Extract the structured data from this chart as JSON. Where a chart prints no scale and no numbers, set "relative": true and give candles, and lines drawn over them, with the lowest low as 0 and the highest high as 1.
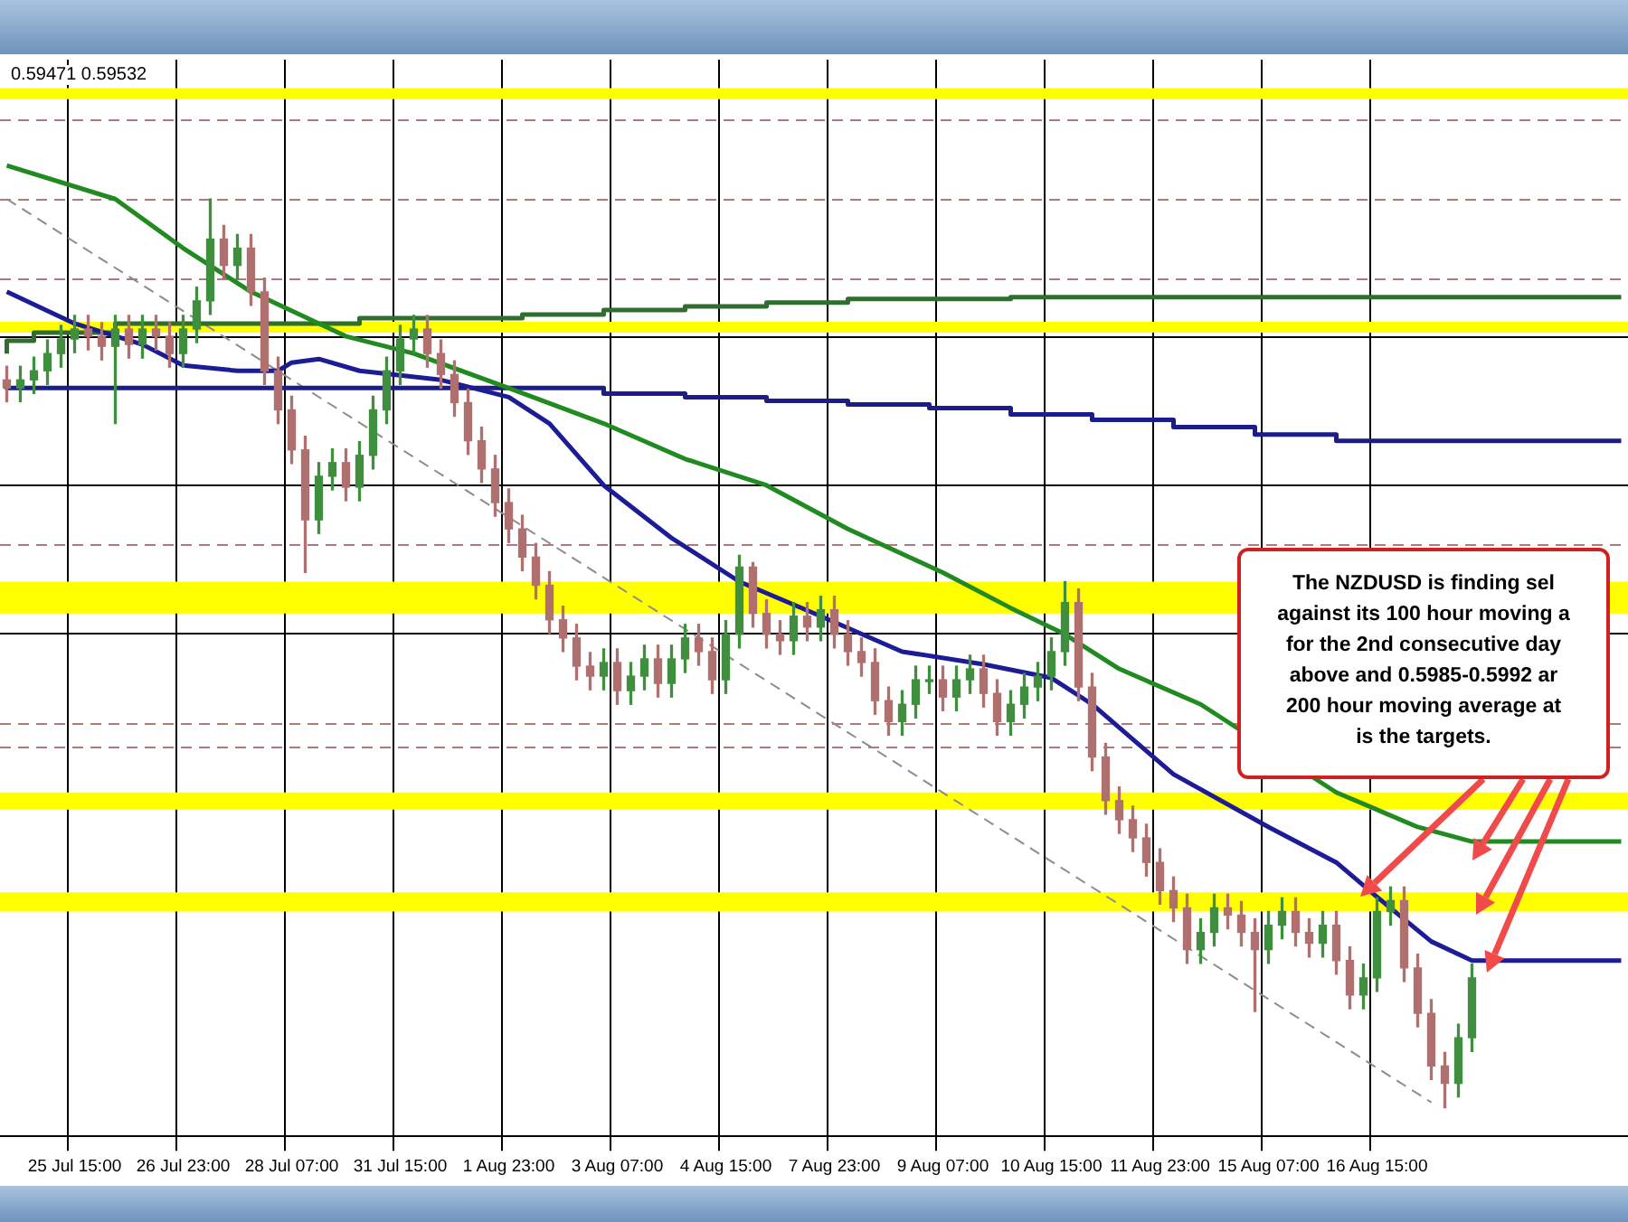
{
  "chart_data": {
    "type": "candlestick",
    "relative": true,
    "tick_labels": "x",
    "grid": "x",
    "legend": false,
    "marker": "none",
    "categories": [
      null,
      null,
      null,
      null,
      null,
      "25 Jul 15:00",
      null,
      null,
      null,
      null,
      null,
      null,
      null,
      "26 Jul 23:00",
      null,
      null,
      null,
      null,
      null,
      null,
      null,
      "28 Jul 07:00",
      null,
      null,
      null,
      null,
      null,
      null,
      null,
      "31 Jul 15:00",
      null,
      null,
      null,
      null,
      null,
      null,
      null,
      "1 Aug 23:00",
      null,
      null,
      null,
      null,
      null,
      null,
      null,
      "3 Aug 07:00",
      null,
      null,
      null,
      null,
      null,
      null,
      null,
      "4 Aug 15:00",
      null,
      null,
      null,
      null,
      null,
      null,
      null,
      "7 Aug 23:00",
      null,
      null,
      null,
      null,
      null,
      null,
      null,
      "9 Aug 07:00",
      null,
      null,
      null,
      null,
      null,
      null,
      null,
      "10 Aug 15:00",
      null,
      null,
      null,
      null,
      null,
      null,
      null,
      "11 Aug 23:00",
      null,
      null,
      null,
      null,
      null,
      null,
      null,
      "15 Aug 07:00",
      null,
      null,
      null,
      null,
      null,
      null,
      null,
      "16 Aug 15:00",
      null,
      null,
      null,
      null,
      null,
      null,
      null,
      null,
      null,
      null,
      null,
      null,
      null,
      null,
      null,
      null,
      null,
      null
    ],
    "ohlc": [
      [
        0.801,
        0.816,
        0.777,
        0.792
      ],
      [
        0.792,
        0.816,
        0.777,
        0.801
      ],
      [
        0.801,
        0.826,
        0.786,
        0.811
      ],
      [
        0.811,
        0.845,
        0.796,
        0.83
      ],
      [
        0.83,
        0.861,
        0.815,
        0.846
      ],
      [
        0.846,
        0.872,
        0.831,
        0.857
      ],
      [
        0.857,
        0.872,
        0.834,
        0.849
      ],
      [
        0.849,
        0.864,
        0.823,
        0.838
      ],
      [
        0.838,
        0.872,
        0.753,
        0.857
      ],
      [
        0.857,
        0.872,
        0.825,
        0.84
      ],
      [
        0.84,
        0.872,
        0.825,
        0.857
      ],
      [
        0.857,
        0.872,
        0.834,
        0.849
      ],
      [
        0.849,
        0.864,
        0.815,
        0.83
      ],
      [
        0.83,
        0.872,
        0.815,
        0.857
      ],
      [
        0.857,
        0.903,
        0.842,
        0.888
      ],
      [
        0.888,
        1.0,
        0.873,
        0.956
      ],
      [
        0.956,
        0.971,
        0.912,
        0.927
      ],
      [
        0.927,
        0.961,
        0.912,
        0.946
      ],
      [
        0.946,
        0.961,
        0.883,
        0.898
      ],
      [
        0.898,
        0.913,
        0.796,
        0.811
      ],
      [
        0.811,
        0.826,
        0.753,
        0.768
      ],
      [
        0.768,
        0.783,
        0.709,
        0.724
      ],
      [
        0.724,
        0.739,
        0.589,
        0.647
      ],
      [
        0.647,
        0.71,
        0.632,
        0.695
      ],
      [
        0.695,
        0.725,
        0.68,
        0.71
      ],
      [
        0.71,
        0.725,
        0.668,
        0.683
      ],
      [
        0.683,
        0.733,
        0.668,
        0.718
      ],
      [
        0.718,
        0.783,
        0.703,
        0.768
      ],
      [
        0.768,
        0.826,
        0.753,
        0.811
      ],
      [
        0.811,
        0.861,
        0.796,
        0.846
      ],
      [
        0.846,
        0.872,
        0.831,
        0.857
      ],
      [
        0.857,
        0.872,
        0.815,
        0.83
      ],
      [
        0.83,
        0.845,
        0.792,
        0.807
      ],
      [
        0.807,
        0.822,
        0.761,
        0.776
      ],
      [
        0.776,
        0.791,
        0.719,
        0.734
      ],
      [
        0.734,
        0.749,
        0.688,
        0.703
      ],
      [
        0.703,
        0.718,
        0.651,
        0.666
      ],
      [
        0.666,
        0.681,
        0.622,
        0.637
      ],
      [
        0.637,
        0.652,
        0.591,
        0.606
      ],
      [
        0.606,
        0.621,
        0.56,
        0.575
      ],
      [
        0.575,
        0.59,
        0.522,
        0.537
      ],
      [
        0.537,
        0.552,
        0.502,
        0.517
      ],
      [
        0.517,
        0.532,
        0.471,
        0.486
      ],
      [
        0.486,
        0.501,
        0.46,
        0.475
      ],
      [
        0.475,
        0.505,
        0.46,
        0.49
      ],
      [
        0.49,
        0.505,
        0.444,
        0.459
      ],
      [
        0.459,
        0.49,
        0.444,
        0.475
      ],
      [
        0.475,
        0.509,
        0.46,
        0.494
      ],
      [
        0.494,
        0.509,
        0.452,
        0.467
      ],
      [
        0.467,
        0.509,
        0.452,
        0.494
      ],
      [
        0.494,
        0.532,
        0.479,
        0.517
      ],
      [
        0.517,
        0.532,
        0.487,
        0.502
      ],
      [
        0.502,
        0.517,
        0.456,
        0.471
      ],
      [
        0.471,
        0.536,
        0.456,
        0.521
      ],
      [
        0.521,
        0.608,
        0.506,
        0.595
      ],
      [
        0.595,
        0.6,
        0.529,
        0.544
      ],
      [
        0.544,
        0.559,
        0.506,
        0.521
      ],
      [
        0.521,
        0.536,
        0.499,
        0.514
      ],
      [
        0.514,
        0.556,
        0.499,
        0.541
      ],
      [
        0.541,
        0.556,
        0.514,
        0.529
      ],
      [
        0.529,
        0.563,
        0.514,
        0.548
      ],
      [
        0.548,
        0.563,
        0.506,
        0.521
      ],
      [
        0.521,
        0.536,
        0.487,
        0.502
      ],
      [
        0.502,
        0.517,
        0.475,
        0.49
      ],
      [
        0.49,
        0.505,
        0.433,
        0.448
      ],
      [
        0.448,
        0.463,
        0.41,
        0.425
      ],
      [
        0.425,
        0.459,
        0.41,
        0.444
      ],
      [
        0.444,
        0.486,
        0.429,
        0.471
      ],
      [
        0.471,
        0.486,
        0.456,
        0.471
      ],
      [
        0.471,
        0.486,
        0.437,
        0.452
      ],
      [
        0.452,
        0.486,
        0.437,
        0.471
      ],
      [
        0.471,
        0.498,
        0.456,
        0.483
      ],
      [
        0.483,
        0.498,
        0.441,
        0.456
      ],
      [
        0.456,
        0.471,
        0.41,
        0.425
      ],
      [
        0.425,
        0.459,
        0.41,
        0.444
      ],
      [
        0.444,
        0.478,
        0.429,
        0.463
      ],
      [
        0.463,
        0.49,
        0.448,
        0.475
      ],
      [
        0.475,
        0.517,
        0.46,
        0.502
      ],
      [
        0.502,
        0.579,
        0.487,
        0.556
      ],
      [
        0.556,
        0.571,
        0.448,
        0.463
      ],
      [
        0.463,
        0.478,
        0.371,
        0.386
      ],
      [
        0.386,
        0.401,
        0.323,
        0.338
      ],
      [
        0.338,
        0.353,
        0.302,
        0.317
      ],
      [
        0.317,
        0.332,
        0.282,
        0.297
      ],
      [
        0.297,
        0.312,
        0.255,
        0.27
      ],
      [
        0.27,
        0.285,
        0.224,
        0.239
      ],
      [
        0.239,
        0.254,
        0.205,
        0.22
      ],
      [
        0.22,
        0.235,
        0.159,
        0.174
      ],
      [
        0.174,
        0.208,
        0.159,
        0.193
      ],
      [
        0.193,
        0.235,
        0.178,
        0.22
      ],
      [
        0.22,
        0.235,
        0.197,
        0.212
      ],
      [
        0.212,
        0.227,
        0.178,
        0.193
      ],
      [
        0.193,
        0.208,
        0.106,
        0.174
      ],
      [
        0.174,
        0.216,
        0.159,
        0.201
      ],
      [
        0.201,
        0.231,
        0.186,
        0.216
      ],
      [
        0.216,
        0.231,
        0.178,
        0.193
      ],
      [
        0.193,
        0.208,
        0.166,
        0.181
      ],
      [
        0.181,
        0.216,
        0.166,
        0.201
      ],
      [
        0.201,
        0.216,
        0.147,
        0.162
      ],
      [
        0.162,
        0.177,
        0.109,
        0.124
      ],
      [
        0.124,
        0.158,
        0.109,
        0.143
      ],
      [
        0.143,
        0.231,
        0.128,
        0.216
      ],
      [
        0.216,
        0.243,
        0.201,
        0.228
      ],
      [
        0.228,
        0.243,
        0.139,
        0.154
      ],
      [
        0.154,
        0.169,
        0.089,
        0.104
      ],
      [
        0.104,
        0.119,
        0.031,
        0.046
      ],
      [
        0.046,
        0.061,
        0.0,
        0.027
      ],
      [
        0.027,
        0.092,
        0.012,
        0.077
      ],
      [
        0.077,
        0.158,
        0.062,
        0.143
      ],
      null,
      null,
      null,
      null,
      null,
      null,
      null,
      null,
      null,
      null,
      null
    ],
    "series": [
      {
        "type": "line",
        "color": "#218a21",
        "line_style": "solid",
        "values": [
          1.037,
          null,
          null,
          null,
          null,
          null,
          null,
          null,
          1.0,
          null,
          null,
          null,
          null,
          0.946,
          null,
          null,
          null,
          null,
          0.898,
          null,
          null,
          null,
          null,
          null,
          null,
          0.849,
          null,
          null,
          null,
          null,
          0.83,
          null,
          null,
          null,
          null,
          null,
          null,
          0.792,
          null,
          null,
          null,
          null,
          null,
          null,
          0.753,
          null,
          null,
          null,
          null,
          null,
          0.714,
          null,
          null,
          null,
          null,
          null,
          0.685,
          null,
          null,
          null,
          null,
          null,
          0.637,
          null,
          null,
          null,
          null,
          null,
          null,
          0.589,
          null,
          null,
          null,
          null,
          0.55,
          null,
          null,
          null,
          0.521,
          null,
          null,
          null,
          0.483,
          null,
          null,
          null,
          null,
          null,
          0.444,
          null,
          null,
          null,
          null,
          null,
          null,
          null,
          null,
          null,
          0.347,
          null,
          null,
          null,
          null,
          null,
          0.309,
          null,
          null,
          null,
          0.293,
          null,
          null,
          null,
          null,
          null,
          null,
          null,
          null,
          null,
          null,
          0.293
        ]
      },
      {
        "type": "line",
        "color": "#1c1c96",
        "line_style": "solid",
        "values": [
          0.898,
          null,
          null,
          null,
          null,
          0.863,
          null,
          null,
          null,
          null,
          0.84,
          null,
          null,
          0.817,
          null,
          null,
          null,
          0.811,
          null,
          null,
          0.811,
          0.82,
          null,
          0.824,
          null,
          null,
          0.811,
          null,
          null,
          null,
          null,
          null,
          0.801,
          null,
          null,
          null,
          null,
          0.782,
          null,
          null,
          0.753,
          null,
          null,
          null,
          0.685,
          null,
          null,
          null,
          null,
          0.627,
          null,
          null,
          null,
          null,
          0.579,
          null,
          null,
          null,
          null,
          null,
          0.541,
          null,
          null,
          null,
          null,
          null,
          0.502,
          null,
          null,
          null,
          null,
          null,
          0.488,
          null,
          null,
          null,
          null,
          0.473,
          null,
          null,
          0.444,
          null,
          null,
          null,
          null,
          null,
          0.367,
          null,
          null,
          null,
          null,
          null,
          null,
          0.309,
          null,
          null,
          null,
          null,
          0.27,
          null,
          null,
          0.232,
          null,
          null,
          null,
          0.183,
          null,
          null,
          0.162,
          null,
          null,
          null,
          null,
          null,
          null,
          null,
          null,
          null,
          null,
          0.162
        ]
      },
      {
        "type": "step",
        "color": "#2f6e2f",
        "line_style": "solid",
        "values": [
          0.83,
          null,
          0.844,
          null,
          null,
          null,
          null,
          null,
          0.853,
          null,
          null,
          null,
          null,
          null,
          null,
          null,
          null,
          null,
          null,
          null,
          null,
          null,
          null,
          null,
          null,
          null,
          0.863,
          null,
          null,
          null,
          null,
          null,
          null,
          null,
          null,
          null,
          null,
          null,
          0.869,
          null,
          null,
          null,
          null,
          null,
          0.873,
          null,
          null,
          null,
          null,
          null,
          0.878,
          null,
          null,
          null,
          null,
          null,
          0.882,
          null,
          null,
          null,
          null,
          null,
          0.886,
          null,
          null,
          null,
          null,
          null,
          null,
          null,
          null,
          null,
          null,
          null,
          0.89,
          null,
          null,
          null,
          null,
          null,
          0.892,
          null,
          null,
          null,
          null,
          null,
          null,
          null,
          null,
          null,
          null,
          null,
          null,
          null,
          null,
          null,
          null,
          null,
          null,
          null,
          null,
          null,
          null,
          null,
          null,
          null,
          null,
          null,
          null,
          null,
          null,
          null,
          null,
          null,
          null,
          null,
          null,
          null,
          null,
          0.892
        ]
      },
      {
        "type": "step",
        "color": "#1c1c8c",
        "line_style": "solid",
        "values": [
          0.795,
          null,
          null,
          null,
          null,
          null,
          null,
          null,
          null,
          null,
          null,
          null,
          null,
          null,
          null,
          null,
          null,
          null,
          null,
          null,
          null,
          null,
          null,
          null,
          null,
          null,
          null,
          null,
          null,
          null,
          null,
          null,
          null,
          null,
          null,
          null,
          null,
          null,
          null,
          null,
          null,
          null,
          null,
          null,
          0.792,
          null,
          null,
          null,
          null,
          null,
          0.786,
          null,
          null,
          null,
          null,
          null,
          0.782,
          null,
          null,
          null,
          null,
          null,
          0.778,
          null,
          null,
          null,
          null,
          null,
          0.774,
          null,
          null,
          null,
          null,
          null,
          0.77,
          null,
          null,
          null,
          null,
          null,
          0.763,
          null,
          null,
          null,
          null,
          null,
          0.757,
          null,
          null,
          null,
          null,
          null,
          0.749,
          null,
          null,
          null,
          null,
          null,
          0.741,
          null,
          null,
          null,
          null,
          null,
          0.734,
          null,
          null,
          null,
          null,
          null,
          null,
          null,
          null,
          null,
          null,
          null,
          null,
          null,
          null,
          0.734
        ]
      },
      {
        "type": "line",
        "color": "#8c8c8c",
        "line_style": "dashed",
        "values": [
          1.0,
          null,
          null,
          null,
          null,
          null,
          null,
          null,
          null,
          null,
          null,
          null,
          null,
          null,
          null,
          null,
          null,
          null,
          null,
          null,
          null,
          null,
          null,
          null,
          null,
          null,
          null,
          null,
          null,
          null,
          null,
          null,
          null,
          null,
          null,
          null,
          null,
          null,
          null,
          null,
          null,
          null,
          null,
          null,
          null,
          null,
          null,
          null,
          null,
          null,
          null,
          null,
          null,
          null,
          null,
          null,
          null,
          null,
          null,
          null,
          null,
          null,
          null,
          null,
          null,
          null,
          null,
          null,
          null,
          null,
          null,
          null,
          null,
          null,
          null,
          null,
          null,
          null,
          null,
          null,
          null,
          null,
          null,
          null,
          null,
          null,
          null,
          null,
          null,
          null,
          null,
          null,
          null,
          null,
          null,
          null,
          null,
          null,
          null,
          null,
          null,
          null,
          null,
          null,
          null,
          0.006,
          null,
          null,
          null,
          null,
          null,
          null,
          null,
          null,
          null,
          null,
          null,
          null,
          null,
          null
        ]
      }
    ],
    "bands": [
      {
        "axis": "y",
        "from": 1.11,
        "to": 1.122,
        "color": "#ffff00"
      },
      {
        "axis": "y",
        "from": 0.853,
        "to": 0.865,
        "color": "#ffff00"
      },
      {
        "axis": "y",
        "from": 0.544,
        "to": 0.579,
        "color": "#ffff00"
      },
      {
        "axis": "y",
        "from": 0.328,
        "to": 0.347,
        "color": "#ffff00"
      },
      {
        "axis": "y",
        "from": 0.216,
        "to": 0.237,
        "color": "#ffff00"
      }
    ],
    "ref_lines": [
      {
        "axis": "y",
        "value": 1.087,
        "color": "#b07a7a",
        "line_style": "dashed"
      },
      {
        "axis": "y",
        "value": 1.0,
        "color": "#b07a7a",
        "line_style": "dashed"
      },
      {
        "axis": "y",
        "value": 0.913,
        "color": "#b07a7a",
        "line_style": "dashed"
      },
      {
        "axis": "y",
        "value": 0.849,
        "color": "#000000",
        "line_style": "solid"
      },
      {
        "axis": "y",
        "value": 0.685,
        "color": "#000000",
        "line_style": "solid"
      },
      {
        "axis": "y",
        "value": 0.62,
        "color": "#b07a7a",
        "line_style": "dashed"
      },
      {
        "axis": "y",
        "value": 0.523,
        "color": "#000000",
        "line_style": "solid"
      },
      {
        "axis": "y",
        "value": 0.423,
        "color": "#b07a7a",
        "line_style": "dashed"
      },
      {
        "axis": "y",
        "value": 0.398,
        "color": "#b07a7a",
        "line_style": "dashed"
      }
    ],
    "annotations": [
      "0.59471 0.59532",
      "The NZDUSD is finding sel\nagainst its 100 hour moving a\nfor the 2nd consecutive day\nabove and 0.5985-0.5992 ar\n200 hour moving average at\nis the targets."
    ]
  }
}
